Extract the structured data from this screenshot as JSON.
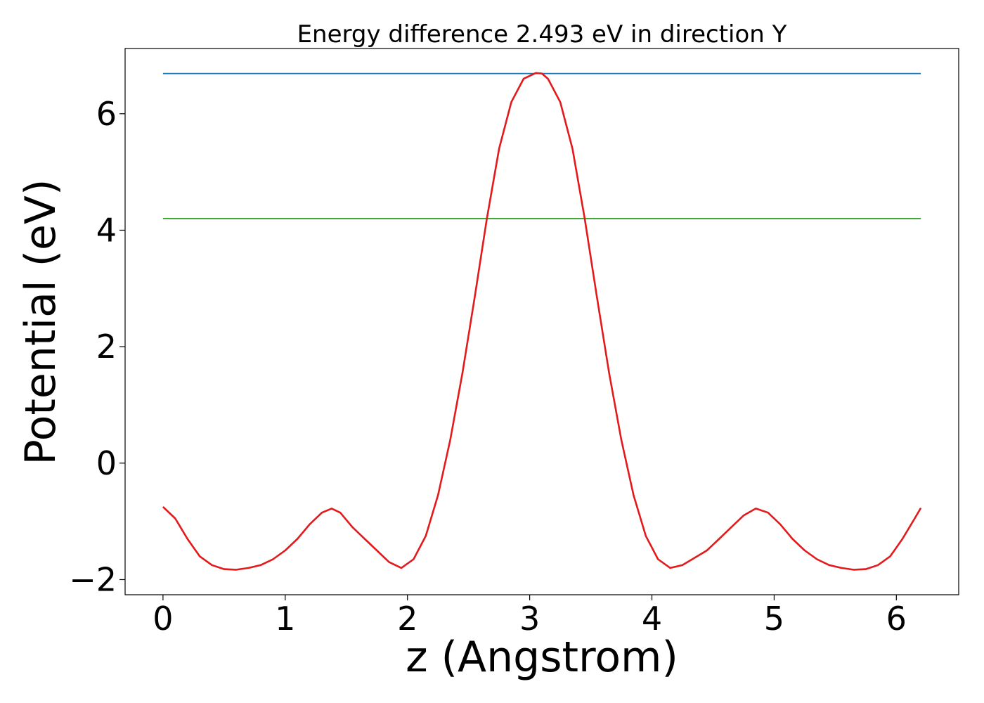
{
  "chart_data": {
    "type": "line",
    "title": "Energy difference 2.493 eV in direction Y",
    "xlabel": "z (Angstrom)",
    "ylabel": "Potential (eV)",
    "xlim": [
      -0.31,
      6.51
    ],
    "ylim": [
      -2.26,
      7.12
    ],
    "xticks": [
      0,
      1,
      2,
      3,
      4,
      5,
      6
    ],
    "yticks": [
      -2,
      0,
      2,
      4,
      6
    ],
    "grid": false,
    "legend": "none",
    "colors": {
      "potential": "#e31a1c",
      "max_line": "#1f78b4",
      "mean_line": "#33a02c"
    },
    "series": [
      {
        "x": [
          0,
          0.1,
          0.2,
          0.3,
          0.4,
          0.5,
          0.6,
          0.7,
          0.8,
          0.9,
          1.0,
          1.1,
          1.2,
          1.3,
          1.38,
          1.45,
          1.55,
          1.65,
          1.75,
          1.85,
          1.95,
          2.05,
          2.15,
          2.25,
          2.35,
          2.45,
          2.55,
          2.65,
          2.75,
          2.85,
          2.95,
          3.05,
          3.1,
          3.15,
          3.25,
          3.35,
          3.45,
          3.55,
          3.65,
          3.75,
          3.85,
          3.95,
          4.05,
          4.15,
          4.25,
          4.33,
          4.45,
          4.55,
          4.65,
          4.75,
          4.85,
          4.95,
          5.05,
          5.15,
          5.25,
          5.35,
          5.45,
          5.55,
          5.65,
          5.75,
          5.85,
          5.95,
          6.05,
          6.15,
          6.2
        ],
        "values": [
          -0.75,
          -0.95,
          -1.3,
          -1.6,
          -1.75,
          -1.82,
          -1.83,
          -1.8,
          -1.75,
          -1.65,
          -1.5,
          -1.3,
          -1.05,
          -0.85,
          -0.78,
          -0.85,
          -1.1,
          -1.3,
          -1.5,
          -1.7,
          -1.8,
          -1.65,
          -1.25,
          -0.55,
          0.4,
          1.55,
          2.85,
          4.2,
          5.4,
          6.2,
          6.6,
          6.7,
          6.69,
          6.6,
          6.2,
          5.4,
          4.2,
          2.85,
          1.55,
          0.4,
          -0.55,
          -1.25,
          -1.65,
          -1.8,
          -1.75,
          -1.65,
          -1.5,
          -1.3,
          -1.1,
          -0.9,
          -0.78,
          -0.85,
          -1.05,
          -1.3,
          -1.5,
          -1.65,
          -1.75,
          -1.8,
          -1.83,
          -1.82,
          -1.75,
          -1.6,
          -1.3,
          -0.95,
          -0.77
        ]
      },
      {
        "x": [
          0,
          6.2
        ],
        "values": [
          6.69,
          6.69
        ]
      },
      {
        "x": [
          0,
          6.2
        ],
        "values": [
          4.2,
          4.2
        ]
      }
    ]
  }
}
